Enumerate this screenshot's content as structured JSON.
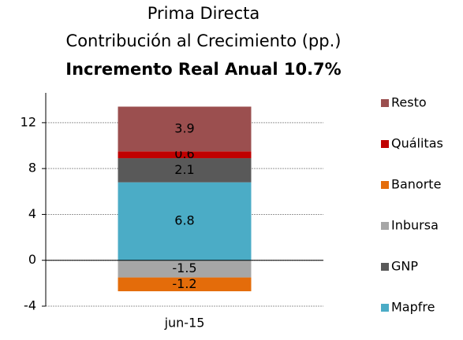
{
  "chart_data": {
    "type": "stacked_bar",
    "title": [
      "Prima Directa",
      "Contribución al Crecimiento (pp.)",
      "Incremento Real Anual 10.7%"
    ],
    "categories": [
      "jun-15"
    ],
    "series": [
      {
        "name": "Mapfre",
        "color": "#4bacc6",
        "values": [
          6.8
        ]
      },
      {
        "name": "GNP",
        "color": "#595959",
        "values": [
          2.1
        ]
      },
      {
        "name": "Inbursa",
        "color": "#a6a6a6",
        "values": [
          -1.5
        ]
      },
      {
        "name": "Banorte",
        "color": "#e46c0a",
        "values": [
          -1.2
        ]
      },
      {
        "name": "Quálitas",
        "color": "#c00000",
        "values": [
          0.6
        ]
      },
      {
        "name": "Resto",
        "color": "#9b4f4f",
        "values": [
          3.9
        ]
      }
    ],
    "ylim": [
      -4,
      14.6
    ],
    "yticks": [
      -4,
      0,
      4,
      8,
      12
    ],
    "grid": true,
    "legend": "right"
  }
}
